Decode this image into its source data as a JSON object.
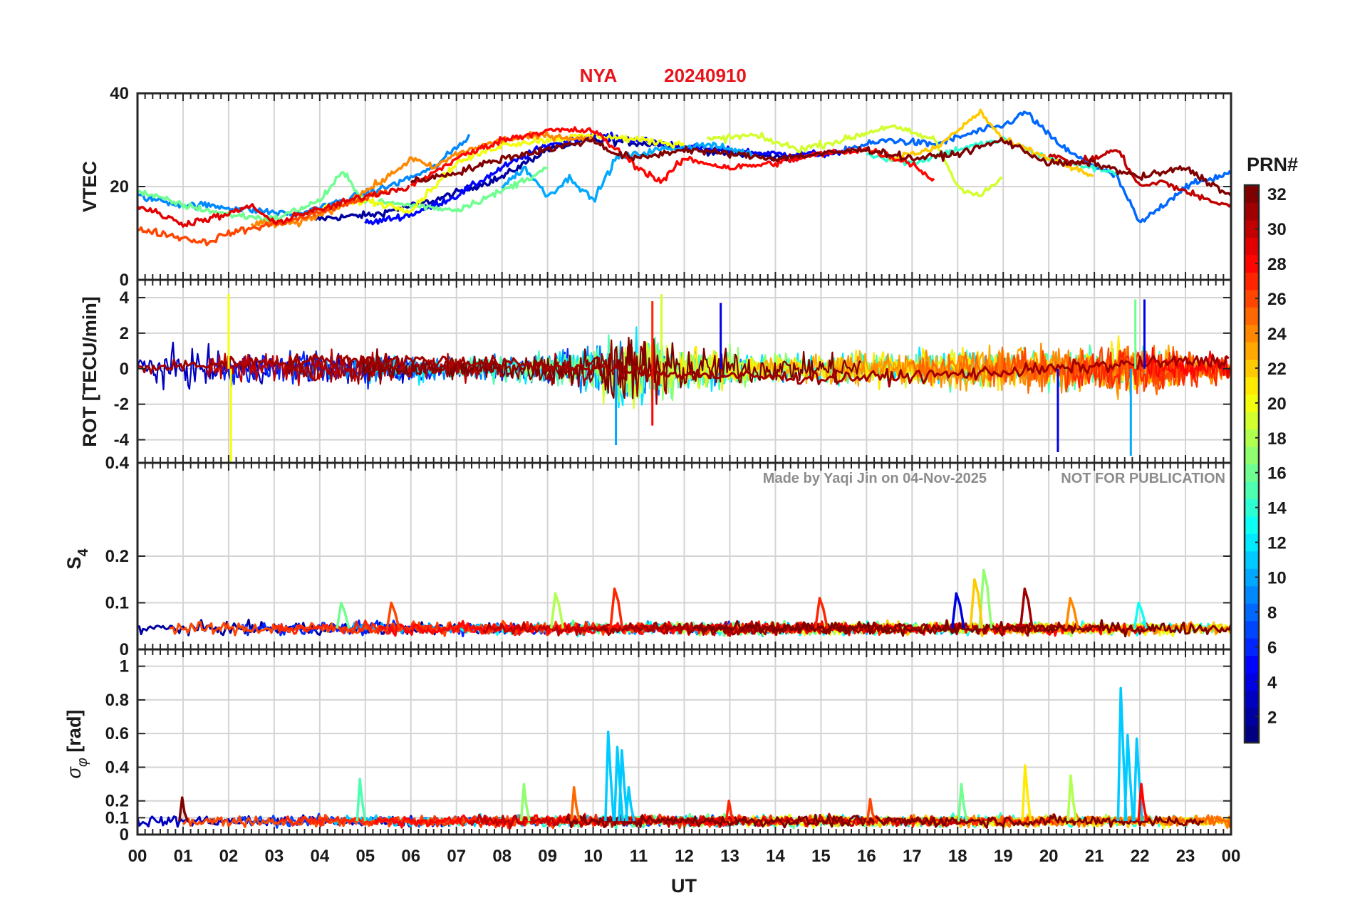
{
  "figure": {
    "title_station": "NYA",
    "title_date": "20240910",
    "xlabel": "UT",
    "x_ticks": [
      "00",
      "01",
      "02",
      "03",
      "04",
      "05",
      "06",
      "07",
      "08",
      "09",
      "10",
      "11",
      "12",
      "13",
      "14",
      "15",
      "16",
      "17",
      "18",
      "19",
      "20",
      "21",
      "22",
      "23",
      "00"
    ],
    "watermark_author": "Made by Yaqi Jin on 04-Nov-2025",
    "watermark_note": "NOT FOR PUBLICATION",
    "colorbar": {
      "label": "PRN#",
      "ticks": [
        "2",
        "4",
        "6",
        "8",
        "10",
        "12",
        "14",
        "16",
        "18",
        "20",
        "22",
        "24",
        "26",
        "28",
        "30",
        "32"
      ],
      "range": [
        1,
        32
      ],
      "colormap": "jet"
    }
  },
  "chart_data": [
    {
      "type": "line",
      "panel": "vtec",
      "ylabel": "VTEC",
      "ylim": [
        0,
        40
      ],
      "y_ticks": [
        0,
        20,
        40
      ],
      "x_range_hours": [
        0,
        24
      ],
      "grid": true,
      "series": [
        {
          "prn": 2,
          "x": [
            3.8,
            5.2,
            6.5,
            8.0,
            9.0,
            10.0,
            11.5,
            13.0,
            14.5
          ],
          "y": [
            13,
            14,
            17,
            22,
            28,
            30,
            29,
            27,
            26
          ]
        },
        {
          "prn": 5,
          "x": [
            5.0,
            6.0,
            7.0,
            8.0,
            9.0,
            10.0,
            11.0,
            12.5,
            14.0,
            15.5
          ],
          "y": [
            12,
            14,
            18,
            24,
            29,
            31,
            30,
            28,
            27,
            27
          ]
        },
        {
          "prn": 8,
          "x": [
            15.5,
            16.5,
            17.5,
            18.5,
            19.0,
            19.5,
            20.0,
            20.5,
            21.5,
            22.0,
            23.0,
            24.0
          ],
          "y": [
            28,
            30,
            29,
            32,
            33,
            36,
            31,
            27,
            22,
            12,
            20,
            23
          ]
        },
        {
          "prn": 9,
          "x": [
            0.0,
            0.5,
            1.0,
            1.5,
            2.5,
            3.5,
            4.5,
            5.5,
            6.5,
            7.3
          ],
          "y": [
            18,
            17,
            16,
            16,
            15,
            14,
            17,
            20,
            24,
            31
          ]
        },
        {
          "prn": 10,
          "x": [
            8.0,
            8.5,
            9.0,
            9.5,
            10.0,
            10.5,
            11.5,
            12.5,
            13.5
          ],
          "y": [
            20,
            24,
            18,
            22,
            17,
            26,
            28,
            29,
            27
          ]
        },
        {
          "prn": 14,
          "x": [
            16.0,
            17.0,
            18.0,
            19.0,
            20.0,
            21.0,
            21.5
          ],
          "y": [
            27,
            25,
            28,
            30,
            26,
            24,
            23
          ]
        },
        {
          "prn": 16,
          "x": [
            0.0,
            1.0,
            2.0,
            3.0,
            4.0,
            4.5,
            5.0,
            6.0,
            7.0,
            8.0,
            9.0
          ],
          "y": [
            19,
            16,
            14,
            13,
            17,
            23,
            17,
            16,
            15,
            19,
            24
          ]
        },
        {
          "prn": 19,
          "x": [
            12.5,
            13.5,
            14.5,
            15.5,
            16.5,
            17.5,
            18.0,
            18.5,
            19.0
          ],
          "y": [
            30,
            31,
            28,
            30,
            33,
            30,
            20,
            18,
            22
          ]
        },
        {
          "prn": 20,
          "x": [
            4.0,
            5.0,
            6.0,
            7.0,
            8.0,
            9.0,
            10.0,
            11.0,
            12.0
          ],
          "y": [
            15,
            17,
            15,
            25,
            29,
            30,
            31,
            30,
            29
          ]
        },
        {
          "prn": 22,
          "x": [
            16.5,
            17.5,
            18.0,
            18.5,
            19.0,
            19.5,
            20.5,
            21.0
          ],
          "y": [
            26,
            28,
            32,
            36,
            30,
            28,
            24,
            22
          ]
        },
        {
          "prn": 24,
          "x": [
            2.5,
            3.5,
            4.5,
            5.5,
            6.0,
            6.5,
            7.0,
            8.0,
            9.0,
            10.0
          ],
          "y": [
            12,
            12,
            16,
            22,
            26,
            24,
            27,
            30,
            31,
            30
          ]
        },
        {
          "prn": 26,
          "x": [
            0.0,
            0.5,
            1.0,
            1.5,
            2.0,
            2.5,
            3.0,
            3.5,
            4.5,
            5.5
          ],
          "y": [
            11,
            10,
            9,
            8,
            10,
            11,
            12,
            13,
            16,
            19
          ]
        },
        {
          "prn": 28,
          "x": [
            6.0,
            7.0,
            8.0,
            9.0,
            10.0,
            11.0,
            11.5,
            12.0,
            13.0,
            14.0,
            15.0,
            16.0,
            17.0,
            17.5
          ],
          "y": [
            20,
            26,
            30,
            32,
            32,
            24,
            21,
            26,
            24,
            25,
            27,
            28,
            25,
            21
          ]
        },
        {
          "prn": 29,
          "x": [
            0.0,
            0.5,
            1.0,
            1.5,
            2.0,
            2.5,
            3.0,
            3.5,
            4.0,
            5.0,
            6.0
          ],
          "y": [
            16,
            14,
            12,
            13,
            14,
            16,
            12,
            14,
            15,
            18,
            20
          ]
        },
        {
          "prn": 30,
          "x": [
            20.0,
            20.5,
            21.0,
            21.5,
            22.0,
            22.5,
            23.0,
            23.5,
            24.0
          ],
          "y": [
            27,
            25,
            26,
            28,
            20,
            21,
            19,
            17,
            16
          ]
        },
        {
          "prn": 32,
          "x": [
            6.0,
            7.0,
            8.0,
            9.0,
            10.0,
            10.5,
            11.0,
            12.0,
            13.0,
            14.0,
            15.0,
            16.0,
            17.0,
            18.0,
            19.0,
            20.0,
            21.0,
            22.0,
            23.0,
            24.0
          ],
          "y": [
            21,
            23,
            26,
            28,
            30,
            27,
            26,
            28,
            27,
            26,
            27,
            28,
            26,
            27,
            30,
            25,
            25,
            22,
            24,
            18
          ]
        }
      ]
    },
    {
      "type": "line",
      "panel": "rot",
      "ylabel": "ROT [TECU/min]",
      "ylim": [
        -5.3,
        5
      ],
      "y_ticks": [
        -4,
        -2,
        0,
        2,
        4
      ],
      "x_range_hours": [
        0,
        24
      ],
      "grid": true,
      "envelope": {
        "x": [
          0,
          1,
          2,
          3,
          4,
          5,
          6,
          7,
          8,
          9,
          10,
          10.5,
          11,
          11.5,
          12,
          13,
          14,
          15,
          16,
          17,
          18,
          19,
          19.5,
          20,
          21,
          21.5,
          22,
          23,
          24
        ],
        "amplitude": [
          1.8,
          1.8,
          1.5,
          1.3,
          1.3,
          1.5,
          1.2,
          1.0,
          1.2,
          1.4,
          2.0,
          3.2,
          3.4,
          2.6,
          2.0,
          1.8,
          1.2,
          1.3,
          1.6,
          1.5,
          1.8,
          2.0,
          2.0,
          2.1,
          2.0,
          2.4,
          2.2,
          1.6,
          1.2
        ]
      },
      "spikes": [
        {
          "x": 2.0,
          "y": 4.2,
          "prn": 20
        },
        {
          "x": 2.05,
          "y": -5.3,
          "prn": 20
        },
        {
          "x": 10.5,
          "y": -4.3,
          "prn": 10
        },
        {
          "x": 11.3,
          "y": 3.8,
          "prn": 27
        },
        {
          "x": 11.5,
          "y": 4.2,
          "prn": 19
        },
        {
          "x": 11.3,
          "y": -3.2,
          "prn": 28
        },
        {
          "x": 12.8,
          "y": 3.7,
          "prn": 4
        },
        {
          "x": 20.2,
          "y": -4.7,
          "prn": 4
        },
        {
          "x": 21.8,
          "y": -4.9,
          "prn": 10
        },
        {
          "x": 21.9,
          "y": 3.9,
          "prn": 16
        },
        {
          "x": 22.1,
          "y": 3.9,
          "prn": 4
        }
      ]
    },
    {
      "type": "line",
      "panel": "s4",
      "ylabel": "S4",
      "ylim": [
        0,
        0.4
      ],
      "y_ticks": [
        0,
        0.1,
        0.2,
        0.4
      ],
      "x_range_hours": [
        0,
        24
      ],
      "grid": true,
      "baseline": 0.045,
      "noise": 0.012,
      "peaks": [
        {
          "x": 10.5,
          "y": 0.13,
          "prn": 27
        },
        {
          "x": 18.0,
          "y": 0.12,
          "prn": 4
        },
        {
          "x": 18.6,
          "y": 0.17,
          "prn": 17
        },
        {
          "x": 18.4,
          "y": 0.15,
          "prn": 22
        },
        {
          "x": 19.5,
          "y": 0.13,
          "prn": 31
        },
        {
          "x": 15.0,
          "y": 0.11,
          "prn": 27
        },
        {
          "x": 9.2,
          "y": 0.12,
          "prn": 18
        },
        {
          "x": 4.5,
          "y": 0.1,
          "prn": 16
        },
        {
          "x": 5.6,
          "y": 0.1,
          "prn": 26
        },
        {
          "x": 22.0,
          "y": 0.1,
          "prn": 13
        },
        {
          "x": 20.5,
          "y": 0.11,
          "prn": 24
        }
      ]
    },
    {
      "type": "line",
      "panel": "sigma_phi",
      "ylabel": "σ_φ [rad]",
      "ylim": [
        0,
        1.1
      ],
      "y_ticks": [
        0,
        0.1,
        0.2,
        0.4,
        0.6,
        0.8,
        1
      ],
      "x_range_hours": [
        0,
        24
      ],
      "grid": true,
      "baseline": 0.08,
      "noise": 0.03,
      "peaks": [
        {
          "x": 10.35,
          "y": 0.61,
          "prn": 11
        },
        {
          "x": 10.55,
          "y": 0.52,
          "prn": 11
        },
        {
          "x": 10.65,
          "y": 0.5,
          "prn": 11
        },
        {
          "x": 10.8,
          "y": 0.28,
          "prn": 11
        },
        {
          "x": 21.6,
          "y": 0.87,
          "prn": 11
        },
        {
          "x": 21.75,
          "y": 0.59,
          "prn": 11
        },
        {
          "x": 21.95,
          "y": 0.57,
          "prn": 11
        },
        {
          "x": 22.05,
          "y": 0.3,
          "prn": 28
        },
        {
          "x": 19.5,
          "y": 0.41,
          "prn": 21
        },
        {
          "x": 20.5,
          "y": 0.35,
          "prn": 18
        },
        {
          "x": 4.9,
          "y": 0.33,
          "prn": 15
        },
        {
          "x": 8.5,
          "y": 0.3,
          "prn": 17
        },
        {
          "x": 9.6,
          "y": 0.28,
          "prn": 25
        },
        {
          "x": 18.1,
          "y": 0.3,
          "prn": 16
        },
        {
          "x": 1.0,
          "y": 0.22,
          "prn": 32
        },
        {
          "x": 13.0,
          "y": 0.2,
          "prn": 27
        },
        {
          "x": 16.1,
          "y": 0.21,
          "prn": 26
        }
      ]
    }
  ]
}
